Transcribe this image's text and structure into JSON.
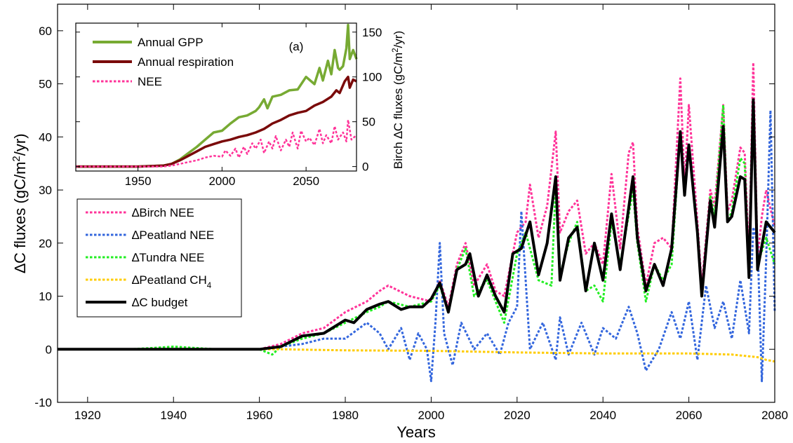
{
  "chart_data": [
    {
      "type": "line",
      "xlabel": "Years",
      "ylabel": "∆C fluxes (gC/m²/yr)",
      "xlim": [
        1913,
        2080
      ],
      "ylim": [
        -10,
        65
      ],
      "xticks": [
        1920,
        1940,
        1960,
        1980,
        2000,
        2020,
        2040,
        2060,
        2080
      ],
      "yticks": [
        -10,
        0,
        10,
        20,
        30,
        40,
        50,
        60
      ],
      "legend_position": "middle-left",
      "series": [
        {
          "name": "∆Birch NEE",
          "color": "#ff3399",
          "style": "dotted",
          "x": [
            1913,
            1920,
            1930,
            1940,
            1950,
            1960,
            1965,
            1970,
            1975,
            1980,
            1985,
            1988,
            1990,
            1995,
            2000,
            2002,
            2004,
            2006,
            2008,
            2010,
            2013,
            2015,
            2017,
            2020,
            2022,
            2023,
            2025,
            2027,
            2029,
            2030,
            2032,
            2034,
            2036,
            2038,
            2040,
            2042,
            2044,
            2046,
            2047,
            2048,
            2050,
            2052,
            2054,
            2056,
            2058,
            2059,
            2060,
            2062,
            2063,
            2065,
            2066,
            2068,
            2069,
            2070,
            2072,
            2073,
            2074,
            2075,
            2076,
            2077,
            2078,
            2080
          ],
          "y": [
            0,
            0,
            0,
            0,
            0,
            0,
            1,
            3,
            4,
            7,
            9,
            11,
            12,
            10,
            9,
            13,
            8,
            16,
            20,
            12,
            16,
            11,
            10,
            22,
            24,
            31,
            21,
            27,
            41,
            22,
            26,
            28,
            18,
            20,
            16,
            33,
            19,
            37,
            39,
            23,
            12,
            20,
            21,
            19,
            51,
            31,
            46,
            24,
            12,
            30,
            27,
            46,
            26,
            28,
            38,
            37,
            17,
            54,
            17,
            25,
            30,
            23
          ]
        },
        {
          "name": "∆Peatland NEE",
          "color": "#3366dd",
          "style": "dotted",
          "x": [
            1913,
            1960,
            1965,
            1970,
            1975,
            1980,
            1985,
            1988,
            1990,
            1993,
            1995,
            1997,
            1999,
            2000,
            2001,
            2002,
            2003,
            2005,
            2007,
            2010,
            2013,
            2016,
            2018,
            2020,
            2021,
            2023,
            2026,
            2029,
            2030,
            2032,
            2035,
            2038,
            2040,
            2043,
            2046,
            2048,
            2050,
            2053,
            2056,
            2058,
            2060,
            2062,
            2064,
            2066,
            2068,
            2070,
            2072,
            2074,
            2075,
            2076,
            2077,
            2078,
            2079,
            2080
          ],
          "y": [
            0,
            0,
            0.5,
            1,
            2,
            2,
            5,
            3,
            0,
            4,
            -2,
            3,
            0,
            -6,
            5,
            20,
            3,
            -3,
            5,
            0,
            3,
            -1,
            5,
            8,
            26,
            0,
            5,
            -2,
            6,
            -1,
            5,
            -1,
            4,
            2,
            8,
            3,
            -4,
            0,
            7,
            2,
            9,
            -2,
            12,
            4,
            9,
            2,
            13,
            3,
            23,
            20,
            -6,
            17,
            45,
            7
          ]
        },
        {
          "name": "∆Tundra NEE",
          "color": "#22ee22",
          "style": "dotted",
          "x": [
            1913,
            1920,
            1930,
            1940,
            1950,
            1960,
            1963,
            1965,
            1970,
            1975,
            1980,
            1985,
            1988,
            1990,
            1995,
            2000,
            2002,
            2004,
            2006,
            2008,
            2010,
            2013,
            2015,
            2017,
            2020,
            2022,
            2025,
            2028,
            2029,
            2030,
            2032,
            2034,
            2036,
            2038,
            2040,
            2042,
            2044,
            2047,
            2048,
            2050,
            2052,
            2054,
            2056,
            2058,
            2059,
            2060,
            2062,
            2063,
            2065,
            2066,
            2068,
            2069,
            2070,
            2072,
            2073,
            2074,
            2075,
            2076,
            2078,
            2080
          ],
          "y": [
            0,
            0,
            0,
            0.5,
            0,
            0,
            -1,
            0.5,
            2,
            3,
            5,
            7,
            8,
            9,
            8,
            9,
            12,
            7,
            15,
            19,
            10,
            13,
            9,
            5,
            18,
            22,
            13,
            12,
            31,
            14,
            20,
            24,
            11,
            12,
            9,
            24,
            16,
            30,
            20,
            9,
            16,
            13,
            16,
            41,
            29,
            38,
            22,
            10,
            29,
            25,
            46,
            24,
            26,
            36,
            35,
            14,
            47,
            16,
            21,
            16
          ]
        },
        {
          "name": "∆Peatland CH₄",
          "color": "#ffcc00",
          "style": "dotted",
          "x": [
            1913,
            1965,
            1980,
            2000,
            2020,
            2040,
            2060,
            2070,
            2076,
            2078,
            2080
          ],
          "y": [
            0,
            0,
            -0.2,
            -0.3,
            -0.6,
            -0.8,
            -0.8,
            -1.0,
            -1.5,
            -2.0,
            -2.3
          ]
        },
        {
          "name": "∆C budget",
          "color": "#000000",
          "style": "solid",
          "x": [
            1913,
            1920,
            1930,
            1940,
            1950,
            1960,
            1965,
            1970,
            1975,
            1980,
            1982,
            1985,
            1988,
            1990,
            1993,
            1995,
            1998,
            2000,
            2002,
            2004,
            2006,
            2008,
            2009,
            2011,
            2013,
            2015,
            2017,
            2019,
            2021,
            2023,
            2025,
            2027,
            2029,
            2030,
            2032,
            2034,
            2036,
            2038,
            2040,
            2042,
            2044,
            2047,
            2048,
            2050,
            2052,
            2054,
            2056,
            2058,
            2059,
            2060,
            2062,
            2063,
            2065,
            2066,
            2068,
            2069,
            2070,
            2072,
            2073,
            2074,
            2075,
            2076,
            2078,
            2080
          ],
          "y": [
            0,
            0,
            0,
            0,
            0,
            0,
            0.5,
            2.5,
            3,
            5.5,
            5,
            7.5,
            8.5,
            9,
            7.5,
            8,
            8,
            9.5,
            12.5,
            7,
            15,
            16,
            18,
            10,
            14,
            10,
            7,
            18,
            19,
            24,
            14,
            20,
            32.5,
            13,
            21,
            23,
            11,
            20,
            13,
            25.5,
            15,
            32.5,
            21,
            11,
            16,
            12,
            19,
            41,
            29,
            38.5,
            22,
            10,
            28,
            23,
            42,
            24,
            25,
            32.5,
            32,
            13.5,
            47,
            15,
            24,
            22
          ]
        }
      ]
    },
    {
      "type": "line",
      "annotation": "(a)",
      "ylabel": "Birch ∆C fluxes (gC/m²/yr)",
      "xlim": [
        1913,
        2080
      ],
      "ylim": [
        -5,
        160
      ],
      "xticks": [
        1950,
        2000,
        2050
      ],
      "yticks": [
        0,
        50,
        100,
        150
      ],
      "legend_position": "top-left",
      "series": [
        {
          "name": "Annual GPP",
          "color": "#77aa33",
          "style": "solid",
          "x": [
            1913,
            1950,
            1965,
            1970,
            1975,
            1980,
            1985,
            1990,
            1995,
            2000,
            2005,
            2010,
            2015,
            2020,
            2022,
            2025,
            2027,
            2030,
            2035,
            2040,
            2045,
            2050,
            2055,
            2058,
            2060,
            2063,
            2065,
            2067,
            2069,
            2070,
            2072,
            2074,
            2075,
            2076,
            2078,
            2080
          ],
          "y": [
            0,
            0,
            1,
            3,
            8,
            15,
            22,
            30,
            38,
            40,
            48,
            55,
            57,
            62,
            66,
            75,
            65,
            78,
            80,
            85,
            86,
            100,
            92,
            110,
            96,
            118,
            103,
            130,
            110,
            108,
            112,
            132,
            158,
            120,
            130,
            120
          ]
        },
        {
          "name": "Annual respiration",
          "color": "#7a0a0a",
          "style": "solid",
          "x": [
            1913,
            1950,
            1965,
            1970,
            1975,
            1980,
            1985,
            1990,
            1995,
            2000,
            2005,
            2010,
            2015,
            2020,
            2025,
            2030,
            2035,
            2040,
            2045,
            2050,
            2055,
            2060,
            2065,
            2068,
            2070,
            2073,
            2075,
            2076,
            2078,
            2080
          ],
          "y": [
            0,
            0,
            1,
            3,
            7,
            12,
            17,
            22,
            25,
            28,
            30,
            33,
            35,
            38,
            42,
            48,
            52,
            57,
            60,
            62,
            68,
            72,
            78,
            85,
            82,
            95,
            100,
            88,
            97,
            95
          ]
        },
        {
          "name": "NEE",
          "color": "#ff3399",
          "style": "dotted",
          "x": [
            1913,
            1960,
            1965,
            1970,
            1975,
            1980,
            1985,
            1990,
            1995,
            2000,
            2002,
            2005,
            2008,
            2010,
            2013,
            2015,
            2018,
            2020,
            2023,
            2025,
            2028,
            2030,
            2032,
            2035,
            2038,
            2040,
            2042,
            2045,
            2047,
            2050,
            2052,
            2055,
            2058,
            2060,
            2062,
            2065,
            2067,
            2069,
            2072,
            2074,
            2075,
            2077,
            2080
          ],
          "y": [
            0,
            0,
            0,
            1,
            3,
            5,
            7,
            10,
            12,
            11,
            18,
            12,
            20,
            10,
            22,
            14,
            26,
            20,
            30,
            15,
            28,
            20,
            34,
            18,
            30,
            22,
            38,
            20,
            40,
            28,
            32,
            24,
            42,
            26,
            35,
            26,
            45,
            30,
            38,
            28,
            52,
            30,
            35
          ]
        }
      ]
    }
  ]
}
